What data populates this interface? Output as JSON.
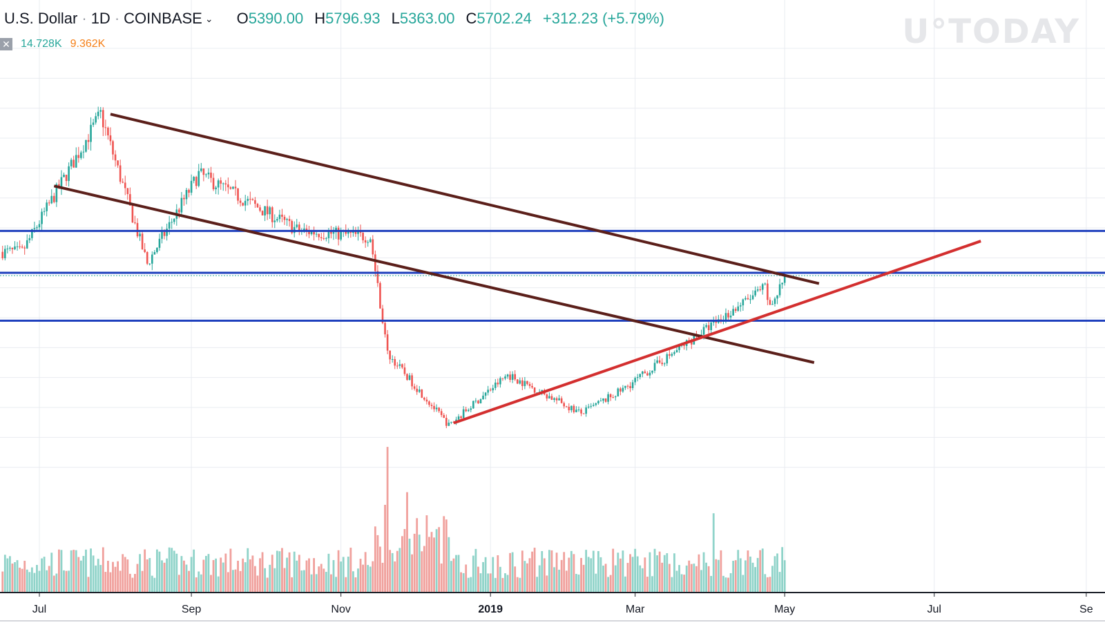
{
  "header": {
    "symbol": "U.S. Dollar",
    "interval": "1D",
    "exchange": "COINBASE",
    "open_label": "O",
    "open": "5390.00",
    "high_label": "H",
    "high": "5796.93",
    "low_label": "L",
    "low": "5363.00",
    "close_label": "C",
    "close": "5702.24",
    "change": "+312.23 (+5.79%)"
  },
  "volume_legend": {
    "hide_icon": "close-icon",
    "v1": "14.728K",
    "v2": "9.362K"
  },
  "watermark": "U°TODAY",
  "colors": {
    "up": "#26a69a",
    "down": "#ef5350",
    "vol_up": "#8fd3c9",
    "vol_down": "#f0a09c",
    "resistance_line": "#1e3fbd",
    "channel_line": "#5b1f1a",
    "support_trend": "#d32f2f",
    "grid": "#e9ecf1"
  },
  "chart_data": {
    "type": "candlestick",
    "x_tick_labels": [
      "Jul",
      "Sep",
      "Nov",
      "2019",
      "Mar",
      "May",
      "Jul",
      "Se"
    ],
    "key_points": [
      {
        "date": "2018-06-24",
        "price": 6100
      },
      {
        "date": "2018-07-26",
        "price": 8400
      },
      {
        "date": "2018-08-14",
        "price": 5900
      },
      {
        "date": "2018-09-04",
        "price": 7400
      },
      {
        "date": "2018-10-15",
        "price": 6450
      },
      {
        "date": "2018-11-13",
        "price": 6350
      },
      {
        "date": "2018-11-20",
        "price": 4400
      },
      {
        "date": "2018-12-15",
        "price": 3200
      },
      {
        "date": "2019-01-08",
        "price": 4050
      },
      {
        "date": "2019-02-07",
        "price": 3400
      },
      {
        "date": "2019-02-24",
        "price": 3800
      },
      {
        "date": "2019-04-02",
        "price": 4900
      },
      {
        "date": "2019-04-23",
        "price": 5500
      },
      {
        "date": "2019-04-25",
        "price": 5150
      },
      {
        "date": "2019-05-01",
        "price": 5702
      }
    ],
    "horizontal_levels": [
      6450,
      5750,
      4950
    ],
    "last_price": 5702.24,
    "trend_lines": [
      {
        "name": "upper-channel",
        "from": {
          "date": "2018-07-30",
          "price": 8400
        },
        "to": {
          "date": "2019-05-15",
          "price": 5570
        }
      },
      {
        "name": "lower-channel",
        "from": {
          "date": "2018-07-07",
          "price": 7200
        },
        "to": {
          "date": "2019-05-13",
          "price": 4250
        }
      },
      {
        "name": "ascending-support",
        "from": {
          "date": "2018-12-17",
          "price": 3240
        },
        "to": {
          "date": "2019-07-20",
          "price": 6280
        }
      }
    ],
    "volume_spikes": [
      {
        "date": "2018-11-20",
        "value": 14.7
      },
      {
        "date": "2018-11-19",
        "value": 9
      },
      {
        "date": "2019-04-02",
        "value": 8.2
      },
      {
        "date": "2018-11-28",
        "value": 8.7
      }
    ]
  }
}
